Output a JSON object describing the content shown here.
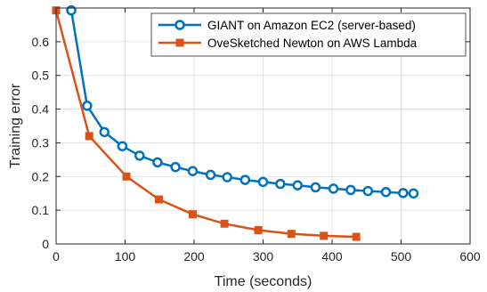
{
  "chart_data": {
    "type": "line",
    "title": "",
    "xlabel": "Time (seconds)",
    "ylabel": "Training error",
    "xlim": [
      0,
      600
    ],
    "ylim": [
      0,
      0.7
    ],
    "xticks": [
      0,
      100,
      200,
      300,
      400,
      500,
      600
    ],
    "xtick_labels": [
      "0",
      "100",
      "200",
      "300",
      "400",
      "500",
      "600"
    ],
    "yticks": [
      0,
      0.1,
      0.2,
      0.3,
      0.4,
      0.5,
      0.6
    ],
    "ytick_labels": [
      "0",
      "0.1",
      "0.2",
      "0.3",
      "0.4",
      "0.5",
      "0.6"
    ],
    "grid": true,
    "legend_position": "top-right",
    "series": [
      {
        "name": "GIANT on Amazon EC2 (server-based)",
        "color": "#0072BD",
        "marker": "circle",
        "x": [
          22,
          45,
          70,
          96,
          121,
          147,
          173,
          198,
          224,
          248,
          274,
          300,
          325,
          350,
          376,
          402,
          427,
          452,
          478,
          503,
          518
        ],
        "y": [
          0.693,
          0.41,
          0.332,
          0.29,
          0.262,
          0.242,
          0.228,
          0.216,
          0.205,
          0.198,
          0.19,
          0.184,
          0.178,
          0.174,
          0.168,
          0.164,
          0.16,
          0.157,
          0.154,
          0.151,
          0.15
        ]
      },
      {
        "name": "OveSketched Newton on AWS Lambda",
        "color": "#D95319",
        "marker": "square",
        "x": [
          0,
          48,
          102,
          149,
          198,
          244,
          293,
          341,
          388,
          435
        ],
        "y": [
          0.693,
          0.32,
          0.2,
          0.132,
          0.088,
          0.06,
          0.041,
          0.03,
          0.024,
          0.021
        ]
      }
    ]
  }
}
